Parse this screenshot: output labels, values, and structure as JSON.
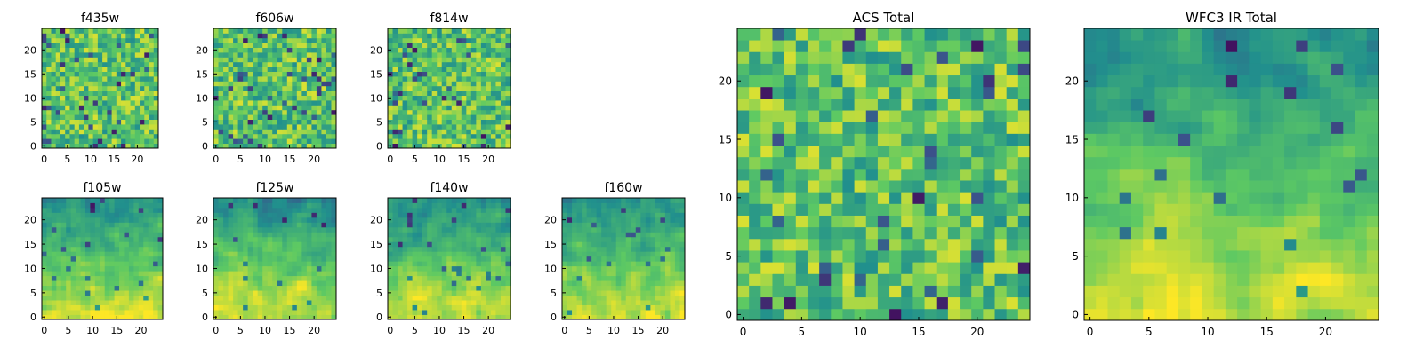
{
  "figure": {
    "grid_size": 25,
    "colormap": "viridis",
    "colormap_stops": [
      "#440154",
      "#3b528b",
      "#21908d",
      "#5dc963",
      "#fde725"
    ]
  },
  "chart_data": [
    {
      "id": "f435w",
      "type": "heatmap",
      "title": "f435w",
      "xticks": [
        0,
        5,
        10,
        15,
        20
      ],
      "yticks": [
        0,
        5,
        10,
        15,
        20
      ],
      "xlim": [
        -0.5,
        24.5
      ],
      "ylim": [
        -0.5,
        24.5
      ],
      "pattern": "noise",
      "seed": 11,
      "value_range": [
        0,
        1
      ]
    },
    {
      "id": "f606w",
      "type": "heatmap",
      "title": "f606w",
      "xticks": [
        0,
        5,
        10,
        15,
        20
      ],
      "yticks": [
        0,
        5,
        10,
        15,
        20
      ],
      "xlim": [
        -0.5,
        24.5
      ],
      "ylim": [
        -0.5,
        24.5
      ],
      "pattern": "noise",
      "seed": 23,
      "value_range": [
        0,
        1
      ]
    },
    {
      "id": "f814w",
      "type": "heatmap",
      "title": "f814w",
      "xticks": [
        0,
        5,
        10,
        15,
        20
      ],
      "yticks": [
        0,
        5,
        10,
        15,
        20
      ],
      "xlim": [
        -0.5,
        24.5
      ],
      "ylim": [
        -0.5,
        24.5
      ],
      "pattern": "noise",
      "seed": 37,
      "value_range": [
        0,
        1
      ]
    },
    {
      "id": "f105w",
      "type": "heatmap",
      "title": "f105w",
      "xticks": [
        0,
        5,
        10,
        15,
        20
      ],
      "yticks": [
        0,
        5,
        10,
        15,
        20
      ],
      "xlim": [
        -0.5,
        24.5
      ],
      "ylim": [
        -0.5,
        24.5
      ],
      "pattern": "gradient",
      "seed": 41,
      "value_range": [
        0,
        1
      ]
    },
    {
      "id": "f125w",
      "type": "heatmap",
      "title": "f125w",
      "xticks": [
        0,
        5,
        10,
        15,
        20
      ],
      "yticks": [
        0,
        5,
        10,
        15,
        20
      ],
      "xlim": [
        -0.5,
        24.5
      ],
      "ylim": [
        -0.5,
        24.5
      ],
      "pattern": "gradient",
      "seed": 53,
      "value_range": [
        0,
        1
      ]
    },
    {
      "id": "f140w",
      "type": "heatmap",
      "title": "f140w",
      "xticks": [
        0,
        5,
        10,
        15,
        20
      ],
      "yticks": [
        0,
        5,
        10,
        15,
        20
      ],
      "xlim": [
        -0.5,
        24.5
      ],
      "ylim": [
        -0.5,
        24.5
      ],
      "pattern": "gradient",
      "seed": 67,
      "value_range": [
        0,
        1
      ]
    },
    {
      "id": "f160w",
      "type": "heatmap",
      "title": "f160w",
      "xticks": [
        0,
        5,
        10,
        15,
        20
      ],
      "yticks": [
        0,
        5,
        10,
        15,
        20
      ],
      "xlim": [
        -0.5,
        24.5
      ],
      "ylim": [
        -0.5,
        24.5
      ],
      "pattern": "gradient",
      "seed": 79,
      "value_range": [
        0,
        1
      ]
    },
    {
      "id": "acs-total",
      "type": "heatmap",
      "title": "ACS Total",
      "xticks": [
        0,
        5,
        10,
        15,
        20
      ],
      "yticks": [
        0,
        5,
        10,
        15,
        20
      ],
      "xlim": [
        -0.5,
        24.5
      ],
      "ylim": [
        -0.5,
        24.5
      ],
      "pattern": "noise",
      "seed": 97,
      "value_range": [
        0,
        1
      ]
    },
    {
      "id": "wfc3-ir-total",
      "type": "heatmap",
      "title": "WFC3 IR Total",
      "xticks": [
        0,
        5,
        10,
        15,
        20
      ],
      "yticks": [
        0,
        5,
        10,
        15,
        20
      ],
      "xlim": [
        -0.5,
        24.5
      ],
      "ylim": [
        -0.5,
        24.5
      ],
      "pattern": "gradient",
      "seed": 101,
      "value_range": [
        0,
        1
      ]
    }
  ]
}
